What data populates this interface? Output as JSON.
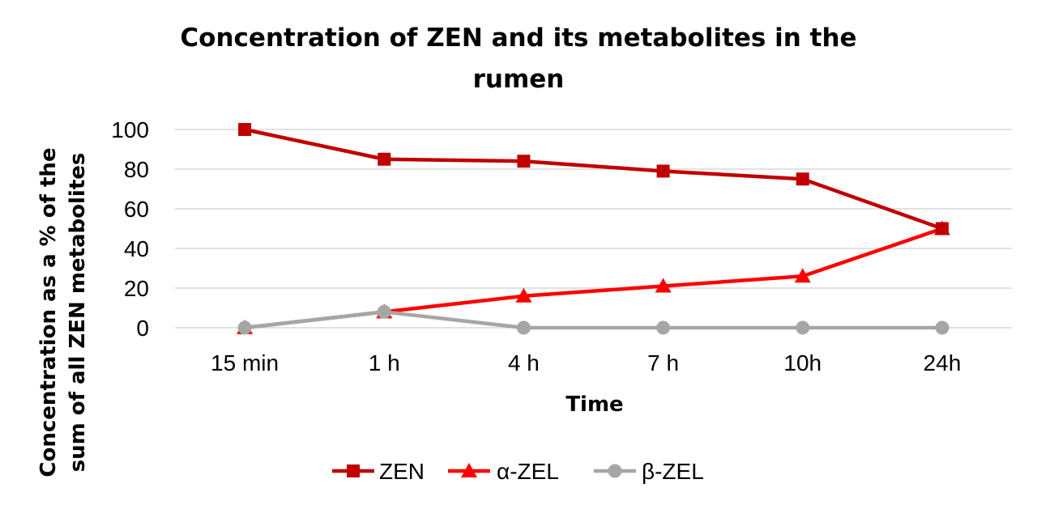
{
  "chart_data": {
    "type": "line",
    "title_line1": "Concentration of ZEN and its metabolites in the",
    "title_line2": "rumen",
    "xlabel": "Time",
    "ylabel_line1": "Concentration as a % of the",
    "ylabel_line2": "sum of all ZEN metabolites",
    "categories": [
      "15 min",
      "1 h",
      "4 h",
      "7 h",
      "10h",
      "24h"
    ],
    "ylim": [
      0,
      100
    ],
    "yticks": [
      "0",
      "20",
      "40",
      "60",
      "80",
      "100"
    ],
    "grid": true,
    "legend_position": "bottom",
    "series": [
      {
        "name": "ZEN",
        "values": [
          100,
          85,
          84,
          79,
          75,
          50
        ],
        "color": "#c00000",
        "marker": "square"
      },
      {
        "name": "α-ZEL",
        "values": [
          0,
          8,
          16,
          21,
          26,
          50
        ],
        "color": "#ff0000",
        "marker": "triangle"
      },
      {
        "name": "β-ZEL",
        "values": [
          0,
          8,
          0,
          0,
          0,
          0
        ],
        "color": "#a6a6a6",
        "marker": "circle"
      }
    ]
  }
}
